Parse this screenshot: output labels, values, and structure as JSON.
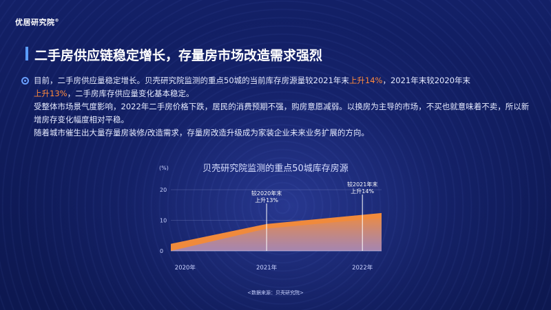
{
  "brand": {
    "name": "优居研究院",
    "mark": "®"
  },
  "slide": {
    "title": "二手房供应链稳定增长，存量房市场改造需求强烈",
    "paragraphs": {
      "p1_a": "目前，二手房供应量稳定增长。贝壳研究院监测的重点50城的当前库存房源量较2021年末",
      "p1_hl1": "上升14%",
      "p1_b": "，2021年末较2020年末",
      "p1_hl2": "上升13%",
      "p1_c": "，二手房库存供应量变化基本稳定。",
      "p2": "受整体市场景气度影响，2022年二手房价格下跌，居民的消费预期不强，购房意愿减弱。以换房为主导的市场，不买也就意味着不卖，所以新增房存变化幅度相对平稳。",
      "p3": "随着城市催生出大量存量房装修/改造需求，存量房改造升级成为家装企业未来业务扩展的方向。"
    },
    "source": "<数据来源：贝壳研究院>"
  },
  "colors": {
    "accent": "#5a9cff",
    "highlight": "#ff8a3d",
    "area": "#f08a3c",
    "area_fill_top": "#e88b4a",
    "area_fill_bottom": "#8d84d6"
  },
  "chart_data": {
    "type": "area",
    "title": "贝壳研究院监测的重点50城库存房源",
    "y_unit_label": "(%)",
    "y_ticks": [
      "20",
      "10",
      "0"
    ],
    "ylim": [
      0,
      20
    ],
    "x_ticks": [
      "2020年",
      "2021年",
      "2022年"
    ],
    "series_lower": {
      "x": [
        0,
        1,
        2.2
      ],
      "y": [
        0,
        7.3,
        10.8
      ]
    },
    "series_upper": {
      "x": [
        0,
        1,
        2.2
      ],
      "y": [
        2.3,
        8.8,
        12.4
      ]
    },
    "annotations": [
      {
        "x_index": 1,
        "text_line1": "较2020年末",
        "text_line2": "上升13%"
      },
      {
        "x_index": 2,
        "text_line1": "较2021年末",
        "text_line2": "上升14%"
      }
    ]
  }
}
